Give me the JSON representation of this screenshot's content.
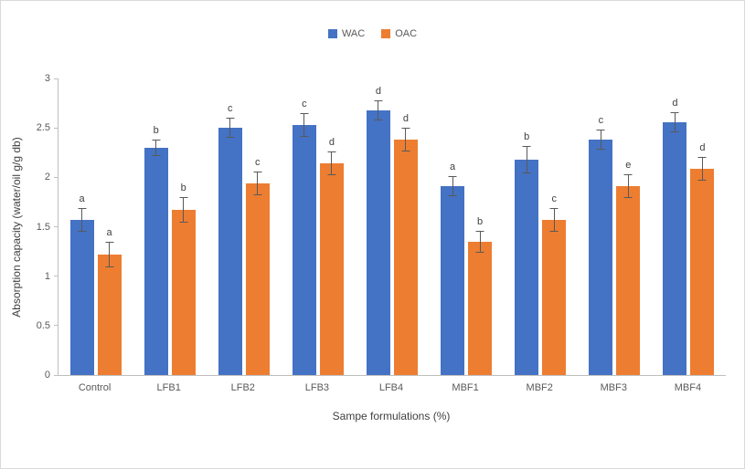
{
  "chart_data": {
    "type": "bar",
    "title": "",
    "categories": [
      "Control",
      "LFB1",
      "LFB2",
      "LFB3",
      "LFB4",
      "MBF1",
      "MBF2",
      "MBF3",
      "MBF4"
    ],
    "series": [
      {
        "name": "WAC",
        "color": "#4472C4",
        "values": [
          1.57,
          2.3,
          2.5,
          2.53,
          2.68,
          1.91,
          2.18,
          2.38,
          2.56
        ],
        "errors": [
          0.12,
          0.08,
          0.1,
          0.12,
          0.1,
          0.1,
          0.14,
          0.1,
          0.1
        ],
        "sig_letters": [
          "a",
          "b",
          "c",
          "c",
          "d",
          "a",
          "b",
          "c",
          "d"
        ]
      },
      {
        "name": "OAC",
        "color": "#ED7D31",
        "values": [
          1.22,
          1.67,
          1.94,
          2.14,
          2.38,
          1.35,
          1.57,
          1.91,
          2.09
        ],
        "errors": [
          0.13,
          0.13,
          0.12,
          0.12,
          0.12,
          0.11,
          0.12,
          0.12,
          0.12
        ],
        "sig_letters": [
          "a",
          "b",
          "c",
          "d",
          "d",
          "b",
          "c",
          "e",
          "d"
        ]
      }
    ],
    "xlabel": "Sampe formulations (%)",
    "ylabel": "Absorption capacity (water/oil g/g db)",
    "ylim": [
      0,
      3
    ],
    "yticks": [
      0,
      0.5,
      1,
      1.5,
      2,
      2.5,
      3
    ],
    "grid": false,
    "legend_position": "top-center"
  }
}
